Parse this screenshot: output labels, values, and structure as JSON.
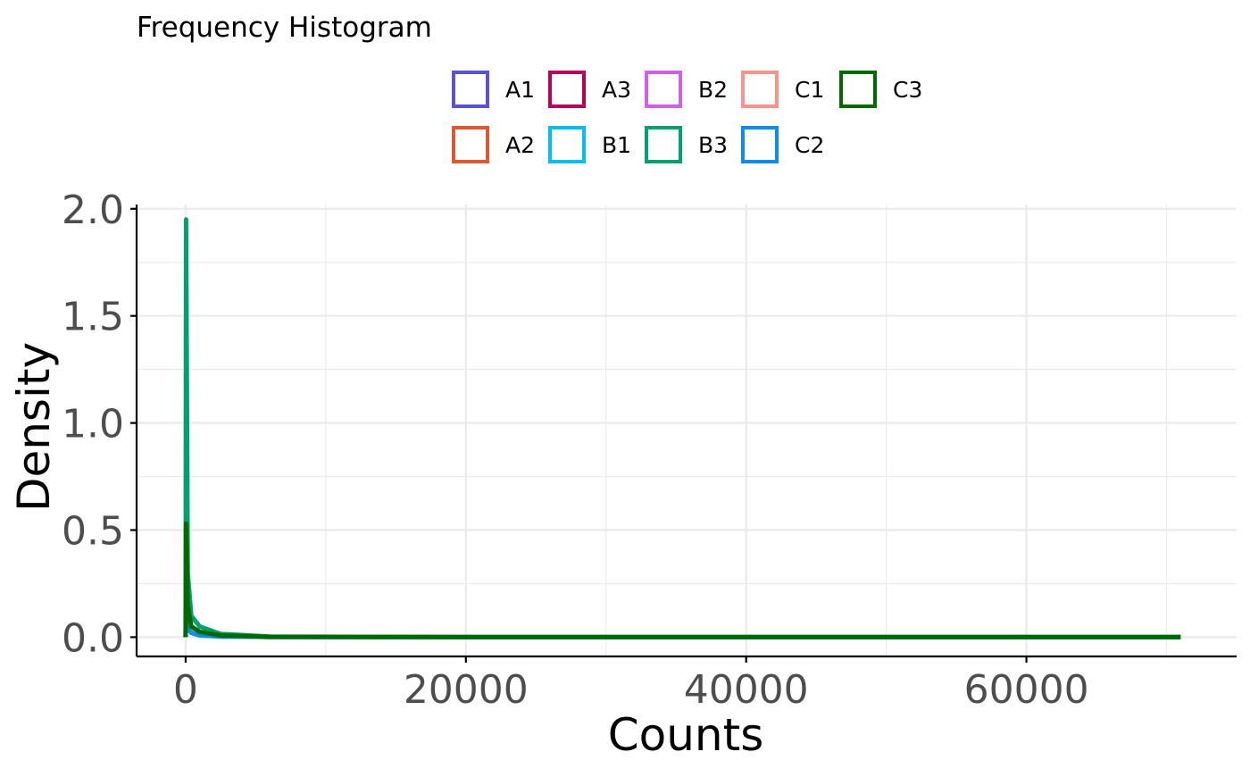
{
  "chart_data": {
    "type": "line",
    "title": "Frequency Histogram",
    "xlabel": "Counts",
    "ylabel": "Density",
    "xlim": [
      -3500,
      75000
    ],
    "ylim": [
      -0.09,
      2.02
    ],
    "x_ticks": [
      0,
      20000,
      40000,
      60000
    ],
    "x_tick_labels": [
      "0",
      "20000",
      "40000",
      "60000"
    ],
    "x_minor_ticks": [
      10000,
      30000,
      50000,
      70000
    ],
    "y_ticks": [
      0.0,
      0.5,
      1.0,
      1.5,
      2.0
    ],
    "y_tick_labels": [
      "0.0",
      "0.5",
      "1.0",
      "1.5",
      "2.0"
    ],
    "y_minor_ticks": [
      0.25,
      0.75,
      1.25,
      1.75
    ],
    "grid": true,
    "legend_position": "top",
    "series": [
      {
        "name": "A1",
        "color": "#5B50D6",
        "x": [
          0,
          30,
          150,
          400,
          1000,
          2500,
          6000,
          20000,
          71000
        ],
        "y": [
          0.0,
          0.12,
          0.06,
          0.03,
          0.012,
          0.004,
          0.001,
          0.0,
          0.0
        ]
      },
      {
        "name": "A2",
        "color": "#E0562E",
        "x": [
          0,
          30,
          150,
          400,
          1000,
          2500,
          6000,
          20000,
          71000
        ],
        "y": [
          0.0,
          0.15,
          0.07,
          0.035,
          0.014,
          0.005,
          0.001,
          0.0,
          0.0
        ]
      },
      {
        "name": "A3",
        "color": "#B8005A",
        "x": [
          0,
          30,
          150,
          400,
          1000,
          2500,
          6000,
          20000,
          71000
        ],
        "y": [
          0.0,
          0.37,
          0.12,
          0.05,
          0.02,
          0.006,
          0.001,
          0.0,
          0.0
        ]
      },
      {
        "name": "B1",
        "color": "#00BFEA",
        "x": [
          0,
          30,
          150,
          400,
          1000,
          2500,
          6000,
          20000,
          71000
        ],
        "y": [
          0.0,
          0.1,
          0.05,
          0.025,
          0.01,
          0.003,
          0.001,
          0.0,
          0.0
        ]
      },
      {
        "name": "B2",
        "color": "#CF60E8",
        "x": [
          0,
          30,
          150,
          400,
          1000,
          2500,
          6000,
          20000,
          71000
        ],
        "y": [
          0.0,
          0.15,
          0.06,
          0.03,
          0.012,
          0.004,
          0.001,
          0.0,
          0.0
        ]
      },
      {
        "name": "B3",
        "color": "#00A070",
        "x": [
          0,
          30,
          150,
          400,
          1000,
          2500,
          6000,
          20000,
          71000
        ],
        "y": [
          0.0,
          1.95,
          0.3,
          0.1,
          0.05,
          0.015,
          0.003,
          0.0,
          0.0
        ]
      },
      {
        "name": "C1",
        "color": "#F8948A",
        "x": [
          0,
          30,
          150,
          400,
          1000,
          2500,
          6000,
          20000,
          71000
        ],
        "y": [
          0.0,
          0.1,
          0.05,
          0.025,
          0.01,
          0.003,
          0.001,
          0.0,
          0.0
        ]
      },
      {
        "name": "C2",
        "color": "#0A8CF0",
        "x": [
          0,
          30,
          150,
          400,
          1000,
          2500,
          6000,
          20000,
          71000
        ],
        "y": [
          0.0,
          0.1,
          0.04,
          0.02,
          0.008,
          0.003,
          0.001,
          0.0,
          0.0
        ]
      },
      {
        "name": "C3",
        "color": "#006A00",
        "x": [
          0,
          30,
          150,
          400,
          1000,
          2500,
          6000,
          20000,
          71000
        ],
        "y": [
          0.0,
          0.53,
          0.15,
          0.05,
          0.025,
          0.008,
          0.002,
          0.0,
          0.0
        ]
      }
    ],
    "legend_order": [
      "A1",
      "A3",
      "B2",
      "C1",
      "C3",
      "A2",
      "B1",
      "B3",
      "C2"
    ]
  },
  "colors": {
    "grid": "#EBEBEB",
    "axis": "#000000",
    "tick_label": "#4D4D4D",
    "text": "#000000"
  }
}
